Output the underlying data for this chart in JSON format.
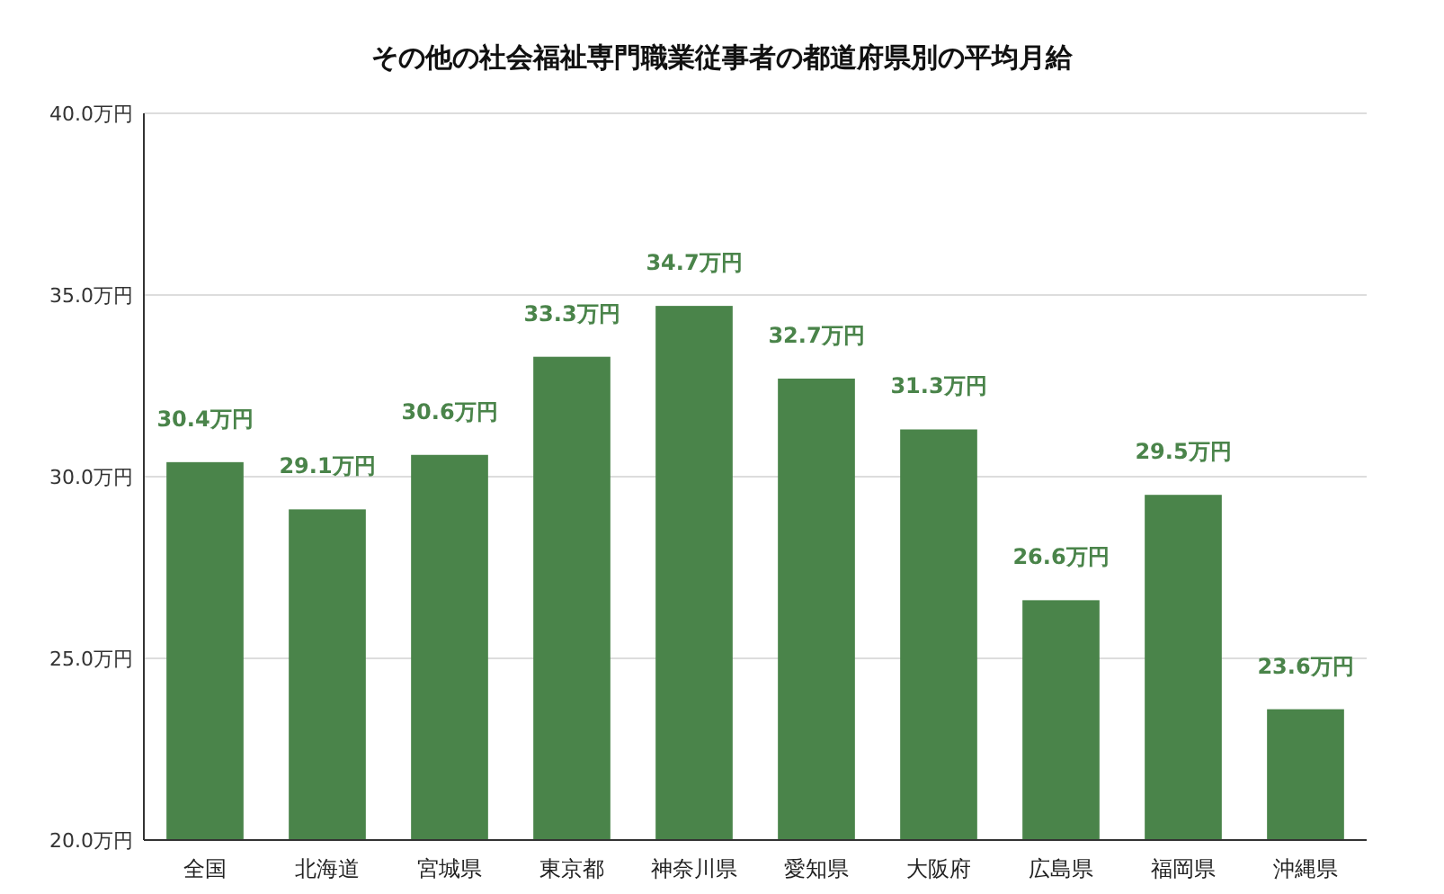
{
  "chart_data": {
    "type": "bar",
    "title": "その他の社会福祉専門職業従事者の都道府県別の平均月給",
    "categories": [
      "全国",
      "北海道",
      "宮城県",
      "東京都",
      "神奈川県",
      "愛知県",
      "大阪府",
      "広島県",
      "福岡県",
      "沖縄県"
    ],
    "values": [
      30.4,
      29.1,
      30.6,
      33.3,
      34.7,
      32.7,
      31.3,
      26.6,
      29.5,
      23.6
    ],
    "value_labels": [
      "30.4万円",
      "29.1万円",
      "30.6万円",
      "33.3万円",
      "34.7万円",
      "32.7万円",
      "31.3万円",
      "26.6万円",
      "29.5万円",
      "23.6万円"
    ],
    "color": "#4a844a",
    "ylim": [
      20,
      40
    ],
    "yticks": [
      {
        "value": 20,
        "label": "20.0万円"
      },
      {
        "value": 25,
        "label": "25.0万円"
      },
      {
        "value": 30,
        "label": "30.0万円"
      },
      {
        "value": 35,
        "label": "35.0万円"
      },
      {
        "value": 40,
        "label": "40.0万円"
      }
    ],
    "grid": "y"
  }
}
